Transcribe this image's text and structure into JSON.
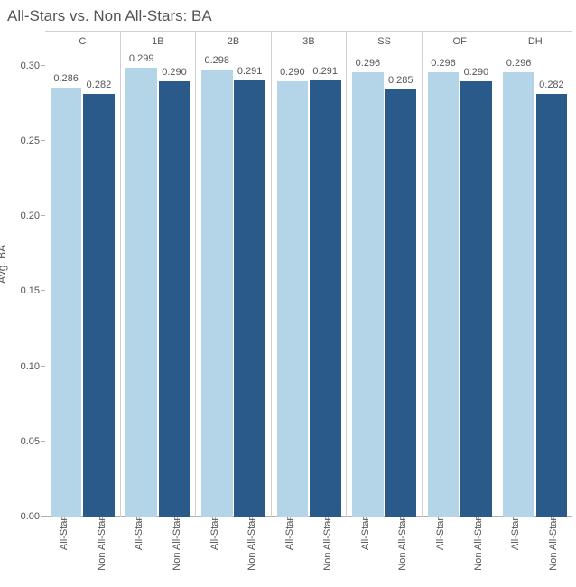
{
  "title": "All-Stars vs. Non All-Stars: BA",
  "ylabel": "Avg. BA",
  "ylim": [
    0,
    0.31
  ],
  "yticks": [
    0.0,
    0.05,
    0.1,
    0.15,
    0.2,
    0.25,
    0.3
  ],
  "ytick_labels": [
    "0.00",
    "0.05",
    "0.10",
    "0.15",
    "0.20",
    "0.25",
    "0.30"
  ],
  "series_labels": [
    "All-Star",
    "Non All-Star"
  ],
  "series_colors": [
    "#b4d4e7",
    "#2a5a8a"
  ],
  "categories": [
    "C",
    "1B",
    "2B",
    "3B",
    "SS",
    "OF",
    "DH"
  ],
  "data": {
    "C": {
      "all_star": 0.286,
      "non": 0.282
    },
    "1B": {
      "all_star": 0.299,
      "non": 0.29
    },
    "2B": {
      "all_star": 0.298,
      "non": 0.291
    },
    "3B": {
      "all_star": 0.29,
      "non": 0.291
    },
    "SS": {
      "all_star": 0.296,
      "non": 0.285
    },
    "OF": {
      "all_star": 0.296,
      "non": 0.29
    },
    "DH": {
      "all_star": 0.296,
      "non": 0.282
    }
  },
  "bar_width_pct": 42,
  "chart_style": {
    "type": "grouped-bar",
    "background_color": "#ffffff",
    "border_color": "#d0d0d0",
    "tick_color": "#b0b0b0",
    "text_color": "#555555",
    "title_fontsize": 17,
    "label_fontsize": 11,
    "axis_title_fontsize": 12
  }
}
